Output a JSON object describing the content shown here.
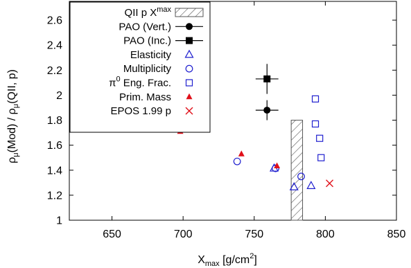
{
  "chart_data": {
    "type": "scatter",
    "xlabel": {
      "main": "X",
      "sub": "max",
      "tail": " [g/cm",
      "sup": "2",
      "end": "]"
    },
    "ylabel": {
      "p1": "ρ",
      "s1": "μ",
      "p2": "(Mod) / ρ",
      "s2": "μ",
      "p3": "(QII, p)"
    },
    "xlim": [
      620,
      850
    ],
    "ylim": [
      1.0,
      2.75
    ],
    "x_ticks": [
      650,
      700,
      750,
      800,
      850
    ],
    "y_ticks": [
      1,
      1.2,
      1.4,
      1.6,
      1.8,
      2,
      2.2,
      2.4,
      2.6
    ],
    "x_tick_labels": [
      "650",
      "700",
      "750",
      "800",
      "850"
    ],
    "y_tick_labels": [
      "1",
      "1.2",
      "1.4",
      "1.6",
      "1.8",
      "2",
      "2.2",
      "2.4",
      "2.6"
    ],
    "legend_position": "top-left",
    "band": {
      "name": {
        "main": "QII p X",
        "sub": "max"
      },
      "x": [
        776,
        784
      ],
      "y": [
        1.0,
        1.8
      ],
      "color": "#555555"
    },
    "series": [
      {
        "name": "PAO (Vert.)",
        "marker": "filled-circle",
        "color": "#000000",
        "points": [
          {
            "x": 759,
            "y": 1.88,
            "xerr": 8,
            "yerr": 0.08
          }
        ]
      },
      {
        "name": "PAO (Inc.)",
        "marker": "filled-square",
        "color": "#000000",
        "points": [
          {
            "x": 759,
            "y": 2.13,
            "xerr": 8,
            "yerr": 0.12
          }
        ]
      },
      {
        "name": "Elasticity",
        "marker": "open-triangle",
        "color": "#1f1fcf",
        "points": [
          {
            "x": 764,
            "y": 1.415
          },
          {
            "x": 778,
            "y": 1.265
          },
          {
            "x": 790,
            "y": 1.275
          }
        ]
      },
      {
        "name": "Multiplicity",
        "marker": "open-circle",
        "color": "#1f1fcf",
        "points": [
          {
            "x": 738,
            "y": 1.47
          },
          {
            "x": 765,
            "y": 1.415
          },
          {
            "x": 783,
            "y": 1.35
          }
        ]
      },
      {
        "name_prefix": "π",
        "name_sup": "0",
        "name": " Eng. Frac.",
        "marker": "open-square",
        "color": "#1f1fcf",
        "points": [
          {
            "x": 793,
            "y": 1.97
          },
          {
            "x": 793,
            "y": 1.77
          },
          {
            "x": 796,
            "y": 1.655
          },
          {
            "x": 797,
            "y": 1.5
          }
        ]
      },
      {
        "name": "Prim. Mass",
        "marker": "filled-triangle",
        "color": "#e0101a",
        "points": [
          {
            "x": 698,
            "y": 1.71
          },
          {
            "x": 741,
            "y": 1.53
          },
          {
            "x": 766,
            "y": 1.435
          }
        ]
      },
      {
        "name": "EPOS 1.99 p",
        "marker": "cross",
        "color": "#e0101a",
        "points": [
          {
            "x": 803,
            "y": 1.295
          }
        ]
      }
    ]
  }
}
